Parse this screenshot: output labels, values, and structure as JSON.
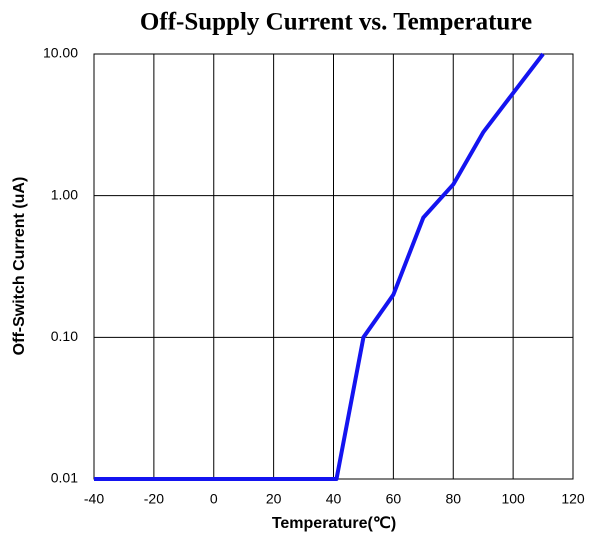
{
  "chart_data": {
    "type": "line",
    "title": "Off-Supply Current vs. Temperature",
    "x_label": "Temperature(℃)",
    "y_label": "Off-Switch Current (uA)",
    "x": [
      -40,
      41,
      50,
      60,
      70,
      80,
      90,
      100,
      110
    ],
    "series": [
      {
        "name": "Off-Switch Current",
        "color": "#1414f0",
        "values": [
          0.01,
          0.01,
          0.1,
          0.2,
          0.7,
          1.2,
          2.8,
          5.3,
          10
        ]
      }
    ],
    "xlim": [
      -40,
      120
    ],
    "xticks": [
      -40,
      -20,
      0,
      20,
      40,
      60,
      80,
      100,
      120
    ],
    "ylim": [
      0.01,
      10
    ],
    "y_log": true,
    "yticks": [
      {
        "value": 0.01,
        "label": "0.01"
      },
      {
        "value": 0.1,
        "label": "0.10"
      },
      {
        "value": 1,
        "label": "1.00"
      },
      {
        "value": 10,
        "label": "10.00"
      }
    ],
    "grid": true
  }
}
